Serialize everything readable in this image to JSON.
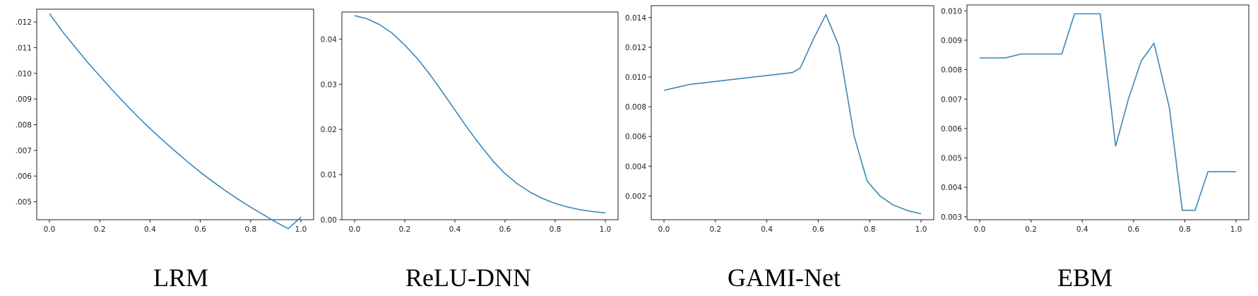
{
  "chart_data": [
    {
      "type": "line",
      "caption": "LRM",
      "color": "#3a87b8",
      "xlim": [
        0,
        1
      ],
      "ylim": [
        0.0043,
        0.0125
      ],
      "xticks": [
        "0.0",
        "0.2",
        "0.4",
        "0.6",
        "0.8",
        "1.0"
      ],
      "xtick_values": [
        0,
        0.2,
        0.4,
        0.6,
        0.8,
        1.0
      ],
      "yticks": [
        ".005",
        ".006",
        ".007",
        ".008",
        ".009",
        ".010",
        ".011",
        ".012"
      ],
      "ytick_values": [
        0.005,
        0.006,
        0.007,
        0.008,
        0.009,
        0.01,
        0.011,
        0.012
      ],
      "x": [
        0,
        0.05,
        0.1,
        0.15,
        0.2,
        0.25,
        0.3,
        0.35,
        0.4,
        0.45,
        0.5,
        0.55,
        0.6,
        0.65,
        0.7,
        0.75,
        0.8,
        0.85,
        0.9,
        0.95,
        1.0
      ],
      "y": [
        0.01233,
        0.01165,
        0.01105,
        0.01045,
        0.0099,
        0.00935,
        0.00883,
        0.00833,
        0.00785,
        0.0074,
        0.00697,
        0.00655,
        0.00615,
        0.00578,
        0.00543,
        0.0051,
        0.00479,
        0.0045,
        0.00421,
        0.00395,
        0.0044
      ]
    },
    {
      "type": "line",
      "caption": "ReLU-DNN",
      "color": "#3a87b8",
      "xlim": [
        0,
        1
      ],
      "ylim": [
        0,
        0.046
      ],
      "xticks": [
        "0.0",
        "0.2",
        "0.4",
        "0.6",
        "0.8",
        "1.0"
      ],
      "xtick_values": [
        0,
        0.2,
        0.4,
        0.6,
        0.8,
        1.0
      ],
      "yticks": [
        "0.00",
        "0.01",
        "0.02",
        "0.03",
        "0.04"
      ],
      "ytick_values": [
        0,
        0.01,
        0.02,
        0.03,
        0.04
      ],
      "x": [
        0,
        0.05,
        0.1,
        0.15,
        0.2,
        0.25,
        0.3,
        0.35,
        0.4,
        0.45,
        0.5,
        0.55,
        0.6,
        0.65,
        0.7,
        0.75,
        0.8,
        0.85,
        0.9,
        0.95,
        1.0
      ],
      "y": [
        0.0452,
        0.0445,
        0.0432,
        0.0413,
        0.0387,
        0.0357,
        0.0322,
        0.0283,
        0.0243,
        0.0203,
        0.0166,
        0.0131,
        0.0102,
        0.0079,
        0.0061,
        0.0047,
        0.0036,
        0.0028,
        0.0022,
        0.0018,
        0.0015
      ]
    },
    {
      "type": "line",
      "caption": "GAMI-Net",
      "color": "#3a87b8",
      "xlim": [
        0,
        1
      ],
      "ylim": [
        0.0004,
        0.0148
      ],
      "xticks": [
        "0.0",
        "0.2",
        "0.4",
        "0.6",
        "0.8",
        "1.0"
      ],
      "xtick_values": [
        0,
        0.2,
        0.4,
        0.6,
        0.8,
        1.0
      ],
      "yticks": [
        "0.002",
        "0.004",
        "0.006",
        "0.008",
        "0.010",
        "0.012",
        "0.014"
      ],
      "ytick_values": [
        0.002,
        0.004,
        0.006,
        0.008,
        0.01,
        0.012,
        0.014
      ],
      "x": [
        0,
        0.05,
        0.1,
        0.15,
        0.2,
        0.25,
        0.3,
        0.35,
        0.4,
        0.45,
        0.5,
        0.53,
        0.58,
        0.63,
        0.68,
        0.74,
        0.79,
        0.84,
        0.89,
        0.95,
        1.0
      ],
      "y": [
        0.0091,
        0.0093,
        0.0095,
        0.0096,
        0.0097,
        0.0098,
        0.0099,
        0.01,
        0.0101,
        0.0102,
        0.0103,
        0.0106,
        0.0125,
        0.0142,
        0.0121,
        0.006,
        0.003,
        0.002,
        0.0014,
        0.001,
        0.0008
      ]
    },
    {
      "type": "line",
      "caption": "EBM",
      "color": "#3a87b8",
      "xlim": [
        0,
        1
      ],
      "ylim": [
        0.0029,
        0.0102
      ],
      "xticks": [
        "0.0",
        "0.2",
        "0.4",
        "0.6",
        "0.8",
        "1.0"
      ],
      "xtick_values": [
        0,
        0.2,
        0.4,
        0.6,
        0.8,
        1.0
      ],
      "yticks": [
        "0.003",
        "0.004",
        "0.005",
        "0.006",
        "0.007",
        "0.008",
        "0.009",
        "0.010"
      ],
      "ytick_values": [
        0.003,
        0.004,
        0.005,
        0.006,
        0.007,
        0.008,
        0.009,
        0.01
      ],
      "x": [
        0,
        0.1,
        0.16,
        0.32,
        0.37,
        0.47,
        0.53,
        0.58,
        0.63,
        0.68,
        0.74,
        0.79,
        0.84,
        0.89,
        1.0
      ],
      "y": [
        0.0084,
        0.0084,
        0.00853,
        0.00853,
        0.0099,
        0.0099,
        0.0054,
        0.007,
        0.0083,
        0.0089,
        0.0067,
        0.00322,
        0.00322,
        0.00453,
        0.00453
      ]
    }
  ]
}
